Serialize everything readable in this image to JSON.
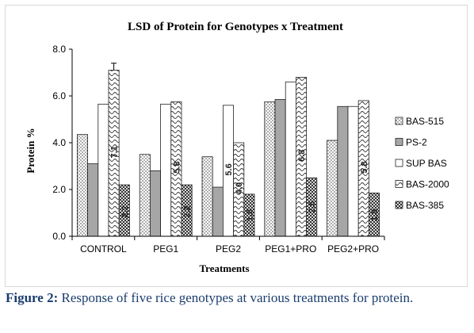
{
  "chart_data": {
    "type": "bar",
    "title": "LSD of Protein for Genotypes x Treatment",
    "xlabel": "Treatments",
    "ylabel": "Protein %",
    "ylim": [
      0,
      8
    ],
    "yticks": [
      "0.0",
      "2.0",
      "4.0",
      "6.0",
      "8.0"
    ],
    "categories": [
      "CONTROL",
      "PEG1",
      "PEG2",
      "PEG1+PRO",
      "PEG2+PRO"
    ],
    "legend_position": "right",
    "series": [
      {
        "name": "BAS-515",
        "values": [
          4.35,
          3.5,
          3.4,
          5.75,
          4.1
        ],
        "pattern": "dots"
      },
      {
        "name": "PS-2",
        "values": [
          3.1,
          2.8,
          2.1,
          5.85,
          5.55
        ],
        "pattern": "gray"
      },
      {
        "name": "SUP BAS",
        "values": [
          5.65,
          5.65,
          5.6,
          6.6,
          5.55
        ],
        "pattern": "white"
      },
      {
        "name": "BAS-2000",
        "values": [
          7.1,
          5.75,
          4.0,
          6.8,
          5.8
        ],
        "pattern": "wave"
      },
      {
        "name": "BAS-385",
        "values": [
          2.2,
          2.2,
          1.8,
          2.5,
          1.85
        ],
        "pattern": "check"
      }
    ],
    "error_bar": {
      "category": "CONTROL",
      "series": "BAS-2000",
      "value": 7.1,
      "upper": 7.4
    },
    "data_labels": [
      {
        "category": "CONTROL",
        "series": "BAS-2000",
        "text": "7.1",
        "y": 3.6
      },
      {
        "category": "CONTROL",
        "series": "BAS-385",
        "text": "2.2",
        "y": 1.05
      },
      {
        "category": "PEG1",
        "series": "BAS-2000",
        "text": "5.8",
        "y": 2.95
      },
      {
        "category": "PEG1",
        "series": "BAS-385",
        "text": "2.2",
        "y": 1.05
      },
      {
        "category": "PEG2",
        "series": "SUP BAS",
        "text": "5.6",
        "y": 2.85
      },
      {
        "category": "PEG2",
        "series": "BAS-2000",
        "text": "4.0",
        "y": 2.05
      },
      {
        "category": "PEG2",
        "series": "BAS-385",
        "text": "1.8",
        "y": 0.9
      },
      {
        "category": "PEG1+PRO",
        "series": "BAS-2000",
        "text": "6.8",
        "y": 3.45
      },
      {
        "category": "PEG1+PRO",
        "series": "BAS-385",
        "text": "2.5",
        "y": 1.25
      },
      {
        "category": "PEG2+PRO",
        "series": "BAS-2000",
        "text": "5.8",
        "y": 2.95
      },
      {
        "category": "PEG2+PRO",
        "series": "BAS-385",
        "text": "1.8",
        "y": 0.9
      }
    ]
  },
  "caption": {
    "label": "Figure 2:",
    "text": " Response of five rice genotypes at various treatments for protein."
  }
}
